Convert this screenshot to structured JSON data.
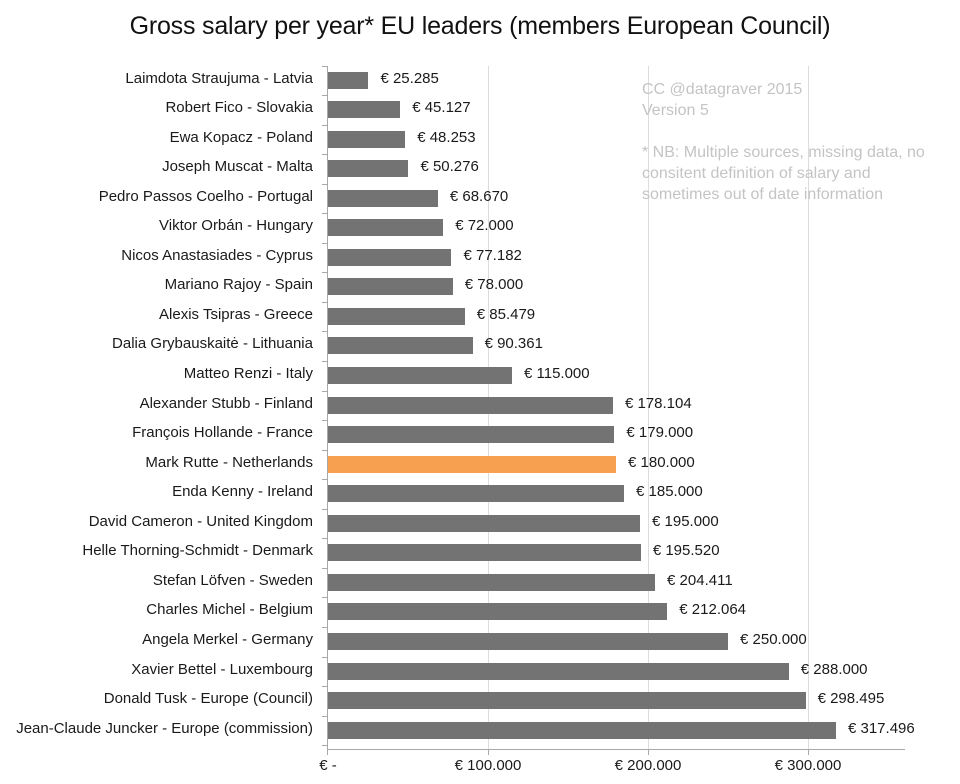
{
  "chart_data": {
    "type": "bar",
    "orientation": "horizontal",
    "title": "Gross salary per year* EU leaders (members European Council)",
    "xlabel": "",
    "ylabel": "",
    "xlim": [
      0,
      360000
    ],
    "x_ticks": [
      0,
      100000,
      200000,
      300000
    ],
    "x_tick_labels": [
      "€ -",
      "€ 100.000",
      "€ 200.000",
      "€ 300.000"
    ],
    "grid": "vertical",
    "legend": null,
    "highlight_color": "#f7a04f",
    "bar_color": "#737373",
    "categories": [
      "Laimdota Straujuma - Latvia",
      "Robert Fico - Slovakia",
      "Ewa Kopacz - Poland",
      "Joseph Muscat - Malta",
      "Pedro Passos Coelho - Portugal",
      "Viktor Orbán - Hungary",
      "Nicos Anastasiades - Cyprus",
      "Mariano Rajoy - Spain",
      "Alexis Tsipras - Greece",
      "Dalia Grybauskaitė - Lithuania",
      "Matteo Renzi - Italy",
      "Alexander Stubb - Finland",
      "François Hollande - France",
      "Mark Rutte - Netherlands",
      "Enda Kenny - Ireland",
      "David Cameron - United Kingdom",
      "Helle Thorning-Schmidt - Denmark",
      "Stefan Löfven - Sweden",
      "Charles Michel - Belgium",
      "Angela Merkel - Germany",
      "Xavier Bettel - Luxembourg",
      "Donald Tusk - Europe (Council)",
      "Jean-Claude Juncker - Europe (commission)"
    ],
    "values": [
      25285,
      45127,
      48253,
      50276,
      68670,
      72000,
      77182,
      78000,
      85479,
      90361,
      115000,
      178104,
      179000,
      180000,
      185000,
      195000,
      195520,
      204411,
      212064,
      250000,
      288000,
      298495,
      317496
    ],
    "value_labels": [
      "€ 25.285",
      "€ 45.127",
      "€ 48.253",
      "€ 50.276",
      "€ 68.670",
      "€ 72.000",
      "€ 77.182",
      "€ 78.000",
      "€ 85.479",
      "€ 90.361",
      "€ 115.000",
      "€ 178.104",
      "€ 179.000",
      "€ 180.000",
      "€ 185.000",
      "€ 195.000",
      "€ 195.520",
      "€ 204.411",
      "€ 212.064",
      "€ 250.000",
      "€ 288.000",
      "€ 298.495",
      "€ 317.496"
    ],
    "highlighted": [
      "Mark Rutte - Netherlands"
    ],
    "annotations": [
      "CC @datagraver 2015",
      "Version 5",
      "* NB: Multiple sources, missing data, no consitent definition of salary and sometimes out of date information"
    ]
  },
  "title": "Gross salary per year* EU leaders (members European Council)",
  "note": {
    "line1": "CC @datagraver 2015",
    "line2": "Version 5",
    "line3": "* NB: Multiple sources, missing data, no",
    "line4": "consitent definition of salary and",
    "line5": "sometimes out of date information"
  },
  "axis": {
    "ticks": [
      "€ -",
      "€ 100.000",
      "€ 200.000",
      "€ 300.000"
    ]
  }
}
